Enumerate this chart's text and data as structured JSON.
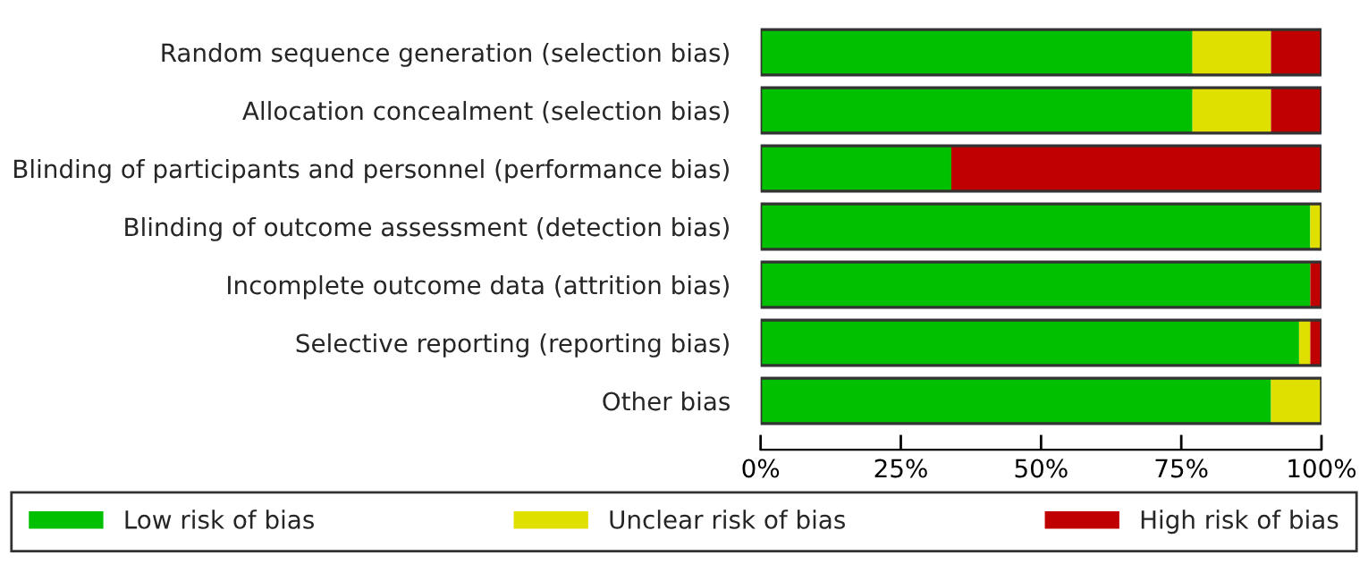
{
  "chart_data": {
    "type": "bar",
    "orientation": "horizontal",
    "stacked": true,
    "categories": [
      "Random sequence generation (selection bias)",
      "Allocation concealment (selection bias)",
      "Blinding of participants and personnel (performance bias)",
      "Blinding of outcome assessment (detection bias)",
      "Incomplete outcome data (attrition bias)",
      "Selective reporting (reporting bias)",
      "Other bias"
    ],
    "series": [
      {
        "name": "Low risk of bias",
        "color": "#00c000",
        "values": [
          77,
          77,
          34,
          98,
          98,
          96,
          91
        ]
      },
      {
        "name": "Unclear risk of bias",
        "color": "#e0e000",
        "values": [
          14,
          14,
          0,
          2,
          0,
          2,
          9
        ]
      },
      {
        "name": "High risk of bias",
        "color": "#c00000",
        "values": [
          9,
          9,
          66,
          0,
          2,
          2,
          0
        ]
      }
    ],
    "xlim": [
      0,
      100
    ],
    "xticks": [
      {
        "value": 0,
        "label": "0%"
      },
      {
        "value": 25,
        "label": "25%"
      },
      {
        "value": 50,
        "label": "50%"
      },
      {
        "value": 75,
        "label": "75%"
      },
      {
        "value": 100,
        "label": "100%"
      }
    ],
    "grid": false,
    "legend": "bottom"
  }
}
